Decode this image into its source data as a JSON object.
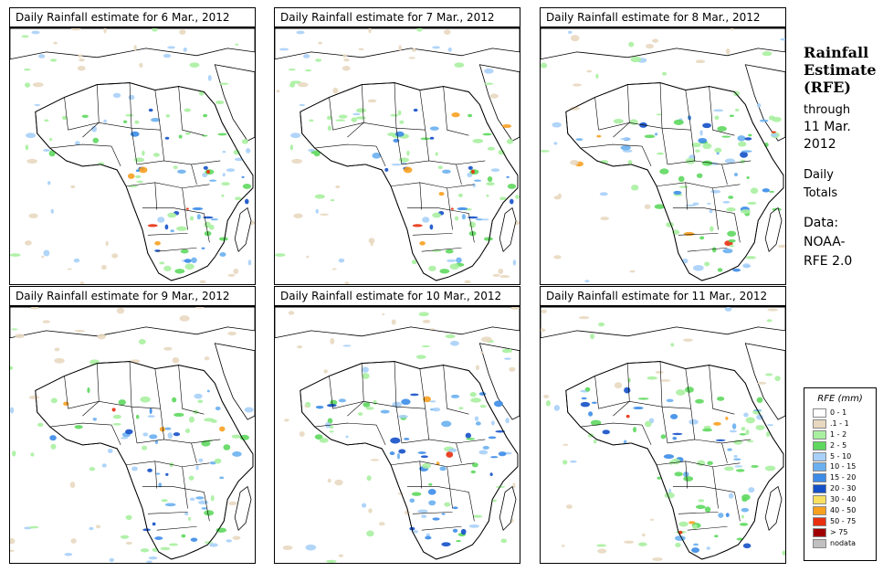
{
  "panels": [
    {
      "title": "Daily Rainfall estimate for  6 Mar., 2012",
      "seed": 6
    },
    {
      "title": "Daily Rainfall estimate for  7 Mar., 2012",
      "seed": 7
    },
    {
      "title": "Daily Rainfall estimate for  8 Mar., 2012",
      "seed": 8
    },
    {
      "title": "Daily Rainfall estimate for  9 Mar., 2012",
      "seed": 9
    },
    {
      "title": "Daily Rainfall estimate for  10 Mar., 2012",
      "seed": 10
    },
    {
      "title": "Daily Rainfall estimate for  11 Mar., 2012",
      "seed": 11
    }
  ],
  "side": {
    "title_line1": "Rainfall",
    "title_line2": "Estimate",
    "title_line3": "(RFE)",
    "through": "through",
    "date_line1": "11 Mar.",
    "date_line2": "2012",
    "totals_line1": "Daily",
    "totals_line2": "Totals",
    "data_line1": "Data:",
    "data_line2": "NOAA-",
    "data_line3": "RFE 2.0"
  },
  "legend": {
    "title": "RFE (mm)",
    "items": [
      {
        "label": "0 - 1",
        "color": "#ffffff"
      },
      {
        "label": ".1 - 1",
        "color": "#e8d8c0"
      },
      {
        "label": "1 - 2",
        "color": "#a8f0a0"
      },
      {
        "label": "2 - 5",
        "color": "#5ed85e"
      },
      {
        "label": "5 - 10",
        "color": "#a8d0f8"
      },
      {
        "label": "10 - 15",
        "color": "#6ab0f0"
      },
      {
        "label": "15 - 20",
        "color": "#3c8ce8"
      },
      {
        "label": "20 - 30",
        "color": "#1450c8"
      },
      {
        "label": "30 - 40",
        "color": "#f8e060"
      },
      {
        "label": "40 - 50",
        "color": "#f8a020"
      },
      {
        "label": "50 - 75",
        "color": "#e83010"
      },
      {
        "label": "> 75",
        "color": "#a00000"
      },
      {
        "label": "nodata",
        "color": "#c0c0c0"
      }
    ]
  }
}
